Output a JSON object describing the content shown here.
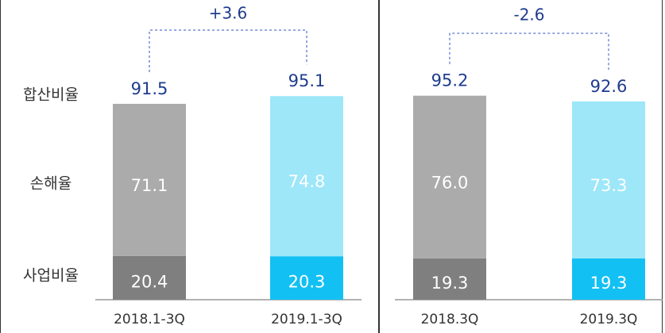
{
  "chart_data": [
    {
      "type": "bar",
      "stacked": true,
      "categories": [
        "2018.1-3Q",
        "2019.1-3Q"
      ],
      "series": [
        {
          "name": "사업비율",
          "colors": [
            "#7f7f7f",
            "#12c0f3"
          ],
          "values": [
            20.4,
            20.3
          ]
        },
        {
          "name": "손해율",
          "colors": [
            "#ababab",
            "#9de7f9"
          ],
          "values": [
            71.1,
            74.8
          ]
        }
      ],
      "totals": {
        "name": "합산비율",
        "values": [
          91.5,
          95.1
        ]
      },
      "annotation": "+3.6"
    },
    {
      "type": "bar",
      "stacked": true,
      "categories": [
        "2018.3Q",
        "2019.3Q"
      ],
      "series": [
        {
          "colors": [
            "#7f7f7f",
            "#12c0f3"
          ],
          "values": [
            19.3,
            19.3
          ]
        },
        {
          "colors": [
            "#ababab",
            "#9de7f9"
          ],
          "values": [
            76.0,
            73.3
          ],
          "value_labels": [
            "76.0",
            "73.3"
          ]
        }
      ],
      "totals": {
        "values": [
          95.2,
          92.6
        ]
      },
      "annotation": "-2.6"
    }
  ]
}
